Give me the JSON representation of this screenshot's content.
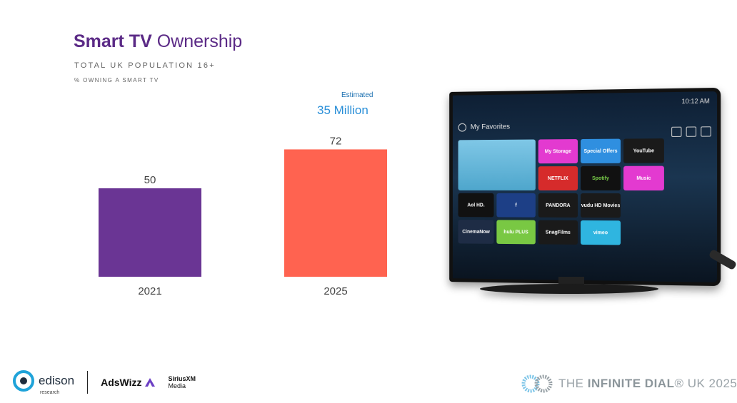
{
  "header": {
    "title_bold": "Smart TV",
    "title_rest": " Ownership",
    "subtitle": "TOTAL UK POPULATION 16+",
    "subsubtitle": "% OWNING A SMART TV"
  },
  "annotation": {
    "small": "Estimated",
    "big": "35 Million"
  },
  "chart_data": {
    "type": "bar",
    "title": "Smart TV Ownership",
    "subtitle": "TOTAL UK POPULATION 16+",
    "ylabel": "% OWNING A SMART TV",
    "categories": [
      "2021",
      "2025"
    ],
    "values": [
      50,
      72
    ],
    "colors": [
      "#6a3594",
      "#ff6350"
    ],
    "ylim": [
      0,
      100
    ],
    "grid": false,
    "annotation": "Estimated 35 Million"
  },
  "tv": {
    "clock": "10:12 AM",
    "favorites": "My Favorites",
    "tiles": [
      "My Storage",
      "Special Offers",
      "YouTube",
      "NETFLIX",
      "Spotify",
      "Music",
      "Aol HD.",
      "f",
      "PANDORA",
      "vudu HD Movies",
      "CinemaNow",
      "hulu PLUS",
      "SnagFilms",
      "vimeo"
    ]
  },
  "footer": {
    "edison": "edison",
    "edison_sub": "research",
    "adswizz": "AdsWizz",
    "sirius_line1": "SiriusXM",
    "sirius_line2": "Media",
    "dial_prefix": "THE ",
    "dial_bold": "INFINITE DIAL",
    "dial_suffix": "® UK 2025"
  }
}
